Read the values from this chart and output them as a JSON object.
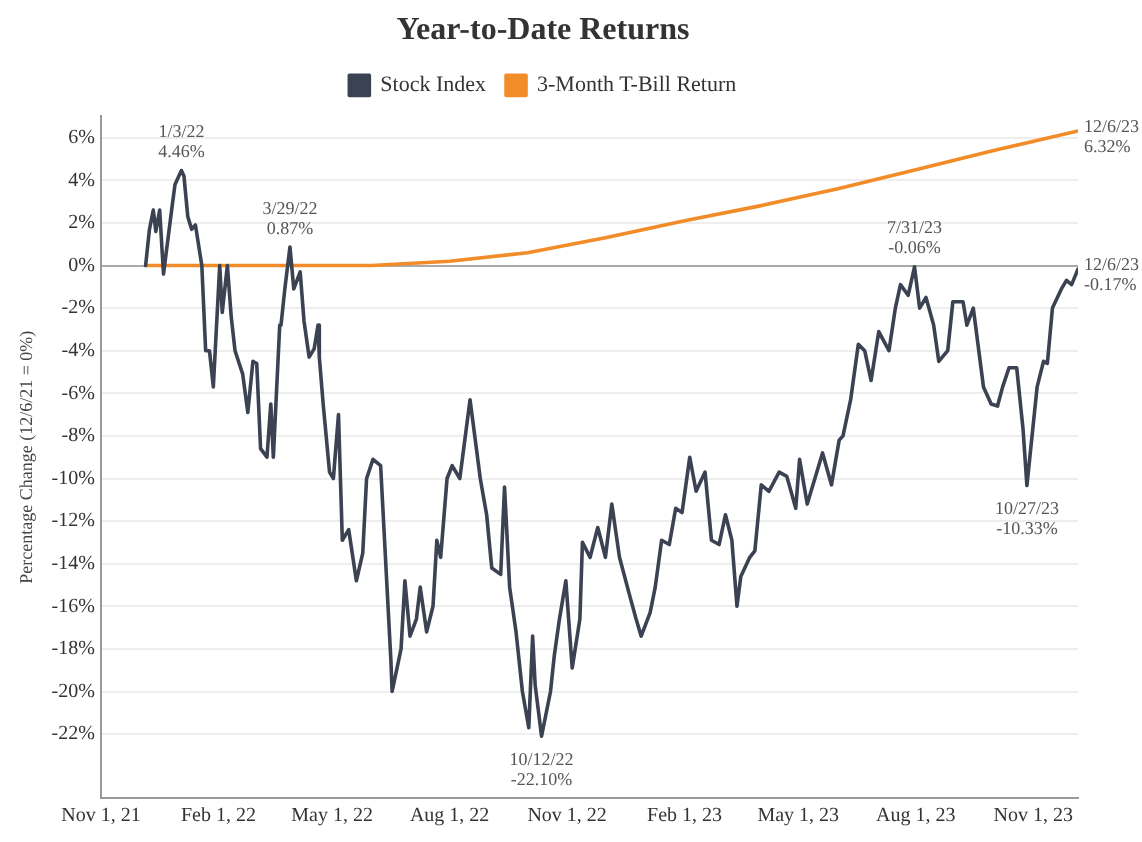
{
  "chart_data": {
    "type": "line",
    "title": "Year-to-Date Returns",
    "ylabel": "Percentage Change (12/6/21 = 0%)",
    "xlim": [
      "2021-11-01",
      "2023-12-06"
    ],
    "xticks": [
      {
        "value": "2021-11-01",
        "label": "Nov 1, 21"
      },
      {
        "value": "2022-02-01",
        "label": "Feb 1, 22"
      },
      {
        "value": "2022-05-01",
        "label": "May 1, 22"
      },
      {
        "value": "2022-08-01",
        "label": "Aug 1, 22"
      },
      {
        "value": "2022-11-01",
        "label": "Nov 1, 22"
      },
      {
        "value": "2023-02-01",
        "label": "Feb 1, 23"
      },
      {
        "value": "2023-05-01",
        "label": "May 1, 23"
      },
      {
        "value": "2023-08-01",
        "label": "Aug 1, 23"
      },
      {
        "value": "2023-11-01",
        "label": "Nov 1, 23"
      }
    ],
    "ylim": [
      -25,
      7
    ],
    "yticks": [
      {
        "value": -22,
        "label": "-22%"
      },
      {
        "value": -20,
        "label": "-20%"
      },
      {
        "value": -18,
        "label": "-18%"
      },
      {
        "value": -16,
        "label": "-16%"
      },
      {
        "value": -14,
        "label": "-14%"
      },
      {
        "value": -12,
        "label": "-12%"
      },
      {
        "value": -10,
        "label": "-10%"
      },
      {
        "value": -8,
        "label": "-8%"
      },
      {
        "value": -6,
        "label": "-6%"
      },
      {
        "value": -4,
        "label": "-4%"
      },
      {
        "value": -2,
        "label": "-2%"
      },
      {
        "value": 0,
        "label": "0%"
      },
      {
        "value": 2,
        "label": "2%"
      },
      {
        "value": 4,
        "label": "4%"
      },
      {
        "value": 6,
        "label": "6%"
      }
    ],
    "grid": "y",
    "legend": "top",
    "marker": "none",
    "line_style": "solid",
    "series": [
      {
        "name": "Stock Index",
        "color": "#3b4252",
        "x": [
          "2021-12-06",
          "2021-12-09",
          "2021-12-12",
          "2021-12-14",
          "2021-12-17",
          "2021-12-20",
          "2021-12-27",
          "2021-12-29",
          "2022-01-03",
          "2022-01-05",
          "2022-01-08",
          "2022-01-11",
          "2022-01-14",
          "2022-01-19",
          "2022-01-22",
          "2022-01-25",
          "2022-01-28",
          "2022-02-02",
          "2022-02-04",
          "2022-02-08",
          "2022-02-11",
          "2022-02-14",
          "2022-02-20",
          "2022-02-24",
          "2022-02-28",
          "2022-03-03",
          "2022-03-06",
          "2022-03-11",
          "2022-03-14",
          "2022-03-16",
          "2022-03-21",
          "2022-03-22",
          "2022-03-25",
          "2022-03-29",
          "2022-04-01",
          "2022-04-06",
          "2022-04-09",
          "2022-04-13",
          "2022-04-17",
          "2022-04-20",
          "2022-04-21",
          "2022-04-24",
          "2022-04-29",
          "2022-05-02",
          "2022-05-06",
          "2022-05-09",
          "2022-05-14",
          "2022-05-20",
          "2022-05-25",
          "2022-05-28",
          "2022-06-02",
          "2022-06-08",
          "2022-06-13",
          "2022-06-16",
          "2022-06-17",
          "2022-06-24",
          "2022-06-27",
          "2022-07-01",
          "2022-07-06",
          "2022-07-09",
          "2022-07-14",
          "2022-07-19",
          "2022-07-22",
          "2022-07-25",
          "2022-07-30",
          "2022-08-03",
          "2022-08-09",
          "2022-08-17",
          "2022-08-22",
          "2022-08-25",
          "2022-08-30",
          "2022-09-03",
          "2022-09-10",
          "2022-09-13",
          "2022-09-17",
          "2022-09-22",
          "2022-09-27",
          "2022-10-02",
          "2022-10-05",
          "2022-10-07",
          "2022-10-12",
          "2022-10-19",
          "2022-10-22",
          "2022-10-26",
          "2022-10-31",
          "2022-11-05",
          "2022-11-11",
          "2022-11-13",
          "2022-11-19",
          "2022-11-25",
          "2022-12-01",
          "2022-12-06",
          "2022-12-12",
          "2022-12-20",
          "2022-12-25",
          "2022-12-29",
          "2023-01-05",
          "2023-01-09",
          "2023-01-14",
          "2023-01-20",
          "2023-01-25",
          "2023-01-30",
          "2023-02-05",
          "2023-02-10",
          "2023-02-17",
          "2023-02-22",
          "2023-02-28",
          "2023-03-05",
          "2023-03-10",
          "2023-03-14",
          "2023-03-17",
          "2023-03-24",
          "2023-03-28",
          "2023-04-02",
          "2023-04-08",
          "2023-04-16",
          "2023-04-22",
          "2023-04-29",
          "2023-05-02",
          "2023-05-08",
          "2023-05-14",
          "2023-05-20",
          "2023-05-27",
          "2023-06-02",
          "2023-06-05",
          "2023-06-11",
          "2023-06-17",
          "2023-06-22",
          "2023-06-27",
          "2023-07-03",
          "2023-07-11",
          "2023-07-16",
          "2023-07-20",
          "2023-07-26",
          "2023-07-31",
          "2023-08-04",
          "2023-08-09",
          "2023-08-15",
          "2023-08-19",
          "2023-08-26",
          "2023-08-30",
          "2023-09-07",
          "2023-09-10",
          "2023-09-15",
          "2023-09-23",
          "2023-09-29",
          "2023-10-04",
          "2023-10-08",
          "2023-10-13",
          "2023-10-19",
          "2023-10-24",
          "2023-10-27",
          "2023-11-04",
          "2023-11-09",
          "2023-11-12",
          "2023-11-16",
          "2023-11-23",
          "2023-11-27",
          "2023-12-01",
          "2023-12-06"
        ],
        "values": [
          0,
          1.7,
          2.6,
          1.6,
          2.6,
          -0.4,
          2.9,
          3.8,
          4.46,
          4.2,
          2.3,
          1.7,
          1.9,
          0,
          -4.0,
          -4.0,
          -5.7,
          0,
          -2.2,
          0,
          -2.4,
          -4.0,
          -5.1,
          -6.9,
          -4.5,
          -4.6,
          -8.6,
          -9.0,
          -6.5,
          -9.0,
          -2.8,
          -2.8,
          -1.1,
          0.87,
          -1.1,
          -0.3,
          -2.6,
          -4.3,
          -3.9,
          -2.8,
          -4.3,
          -6.5,
          -9.7,
          -10.0,
          -7.0,
          -12.9,
          -12.4,
          -14.8,
          -13.5,
          -10.0,
          -9.1,
          -9.4,
          -15.1,
          -18.5,
          -20.0,
          -18.0,
          -14.8,
          -17.4,
          -16.6,
          -15.1,
          -17.2,
          -16.0,
          -12.9,
          -13.7,
          -10.0,
          -9.4,
          -10.0,
          -6.3,
          -8.6,
          -10.0,
          -11.7,
          -14.2,
          -14.5,
          -10.4,
          -15.1,
          -17.2,
          -20.0,
          -21.7,
          -17.4,
          -19.7,
          -22.1,
          -20.0,
          -18.3,
          -16.6,
          -14.8,
          -18.9,
          -16.6,
          -13.0,
          -13.7,
          -12.3,
          -13.7,
          -11.2,
          -13.7,
          -15.5,
          -16.6,
          -17.4,
          -16.3,
          -15.1,
          -12.9,
          -13.1,
          -11.4,
          -11.6,
          -9.0,
          -10.6,
          -9.7,
          -12.9,
          -13.1,
          -11.7,
          -12.9,
          -16.0,
          -14.6,
          -13.7,
          -13.4,
          -10.3,
          -10.6,
          -9.7,
          -9.9,
          -11.4,
          -9.1,
          -11.2,
          -10.0,
          -8.8,
          -10.3,
          -8.2,
          -8.0,
          -6.3,
          -3.7,
          -4.0,
          -5.4,
          -3.1,
          -4.0,
          -2.0,
          -0.9,
          -1.4,
          -0.06,
          -2.0,
          -1.5,
          -2.8,
          -4.5,
          -4.0,
          -1.7,
          -1.7,
          -2.8,
          -2.0,
          -5.7,
          -6.5,
          -6.6,
          -5.7,
          -4.8,
          -4.8,
          -7.7,
          -10.33,
          -5.7,
          -4.5,
          -4.6,
          -2.0,
          -1.1,
          -0.7,
          -0.9,
          -0.17
        ]
      },
      {
        "name": "3-Month T-Bill Return",
        "color": "#f28c28",
        "x": [
          "2021-12-06",
          "2022-03-01",
          "2022-06-01",
          "2022-08-01",
          "2022-10-01",
          "2022-12-01",
          "2023-02-01",
          "2023-04-01",
          "2023-06-01",
          "2023-08-01",
          "2023-10-01",
          "2023-12-06"
        ],
        "values": [
          0,
          0,
          0,
          0.2,
          0.6,
          1.3,
          2.1,
          2.8,
          3.6,
          4.5,
          5.4,
          6.32
        ]
      }
    ],
    "annotations": [
      {
        "text": "1/3/22\n4.46%",
        "x": "2022-01-03",
        "y": 4.46
      },
      {
        "text": "3/29/22\n0.87%",
        "x": "2022-03-29",
        "y": 0.87
      },
      {
        "text": "10/12/22\n-22.10%",
        "x": "2022-10-12",
        "y": -22.1
      },
      {
        "text": "7/31/23\n-0.06%",
        "x": "2023-07-31",
        "y": -0.06
      },
      {
        "text": "10/27/23\n-10.33%",
        "x": "2023-10-27",
        "y": -10.33
      },
      {
        "text": "12/6/23\n-0.17%",
        "x": "2023-12-06",
        "y": -0.17
      },
      {
        "text": "12/6/23\n6.32%",
        "x": "2023-12-06",
        "y": 6.32
      }
    ]
  }
}
